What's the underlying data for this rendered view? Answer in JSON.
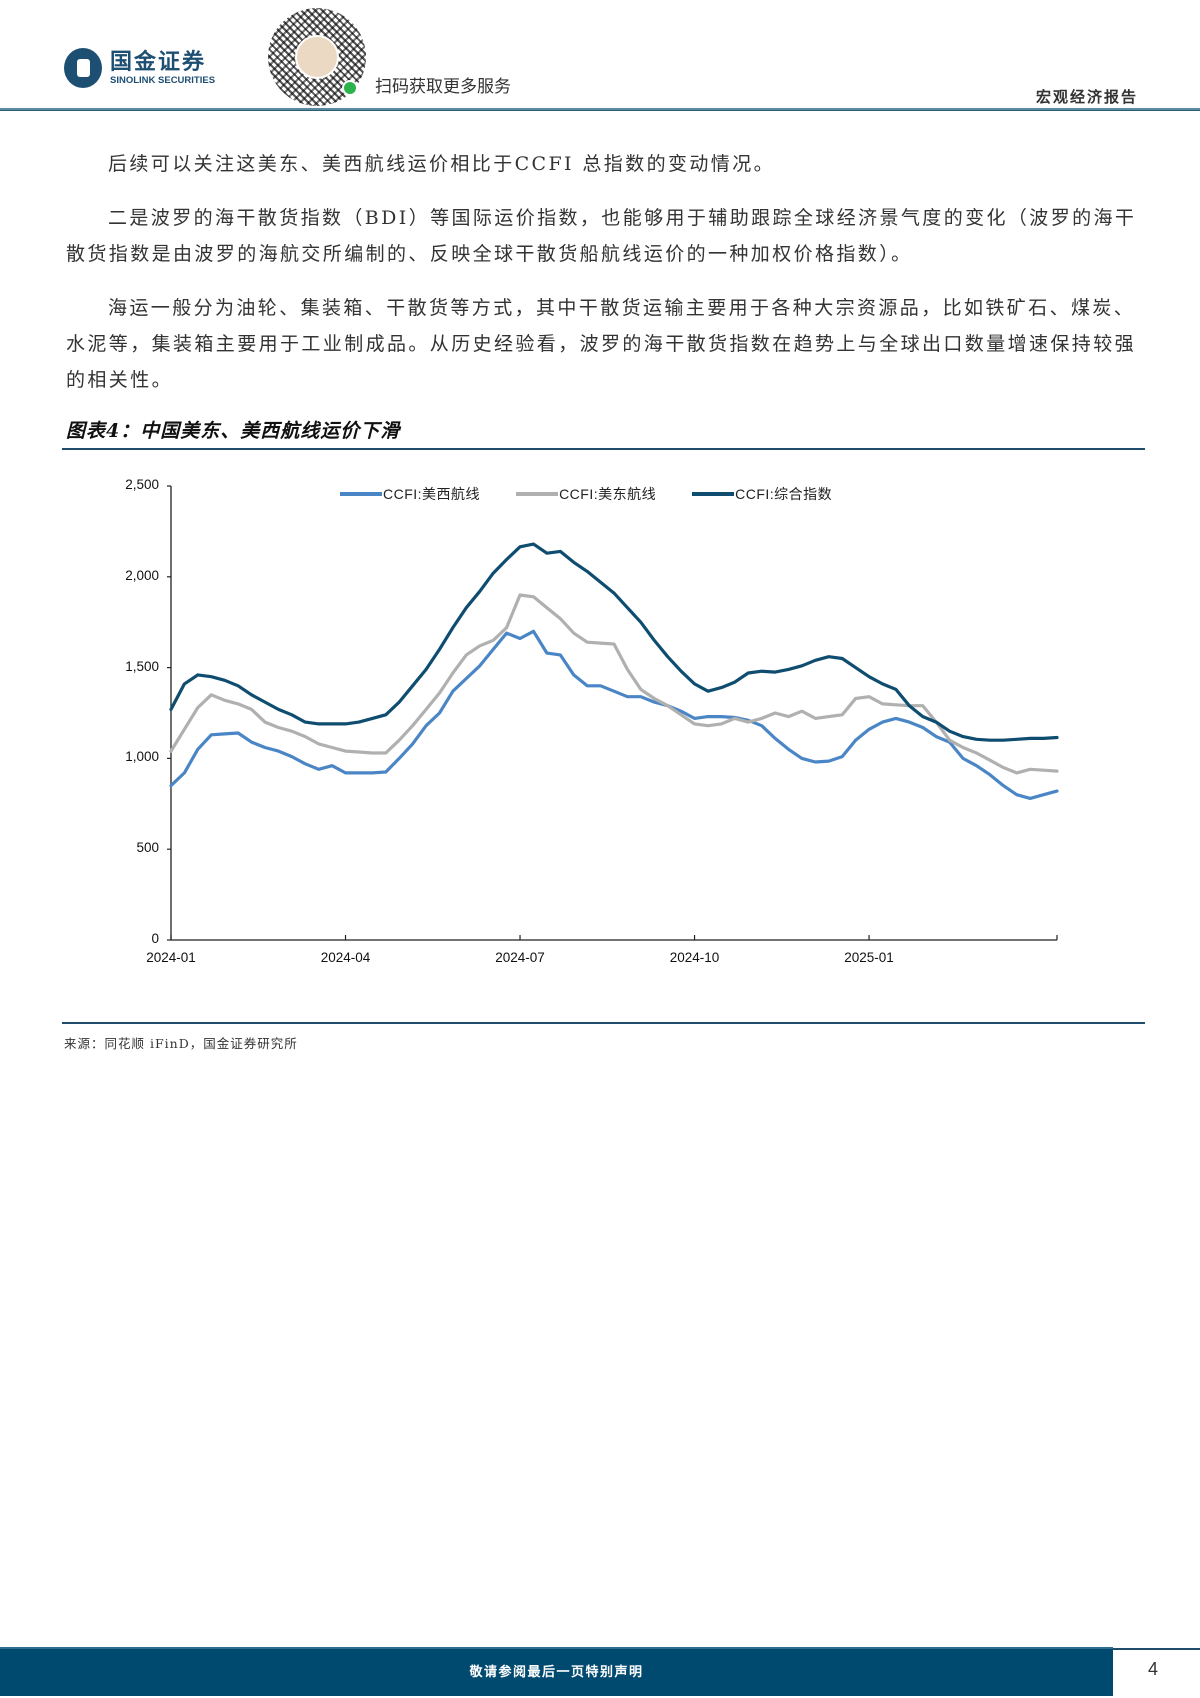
{
  "header": {
    "logo_cn": "国金证券",
    "logo_en": "SINOLINK SECURITIES",
    "qr_label": "扫码获取更多服务",
    "report_type": "宏观经济报告"
  },
  "body": {
    "paragraphs": [
      "后续可以关注这美东、美西航线运价相比于CCFI 总指数的变动情况。",
      "二是波罗的海干散货指数（BDI）等国际运价指数，也能够用于辅助跟踪全球经济景气度的变化（波罗的海干散货指数是由波罗的海航交所编制的、反映全球干散货船航线运价的一种加权价格指数）。",
      "海运一般分为油轮、集装箱、干散货等方式，其中干散货运输主要用于各种大宗资源品，比如铁矿石、煤炭、水泥等，集装箱主要用于工业制成品。从历史经验看，波罗的海干散货指数在趋势上与全球出口数量增速保持较强的相关性。"
    ]
  },
  "figure": {
    "title": "图表4：中国美东、美西航线运价下滑",
    "source": "来源：同花顺 iFinD，国金证券研究所"
  },
  "chart_data": {
    "type": "line",
    "title": "图表4：中国美东、美西航线运价下滑",
    "xlabel": "",
    "ylabel": "",
    "ylim": [
      0,
      2500
    ],
    "yticks": [
      0,
      500,
      1000,
      1500,
      2000,
      2500
    ],
    "ytick_labels": [
      "0",
      "500",
      "1,000",
      "1,500",
      "2,000",
      "2,500"
    ],
    "xtick_labels": [
      "2024-01",
      "2024-04",
      "2024-07",
      "2024-10",
      "2025-01"
    ],
    "xtick_index": [
      0,
      13,
      26,
      39,
      52
    ],
    "frequency": "weekly",
    "grid": false,
    "legend_position": "top",
    "series": [
      {
        "name": "CCFI:美西航线",
        "color": "#4a86c5",
        "values": [
          850,
          920,
          1050,
          1130,
          1135,
          1140,
          1090,
          1060,
          1040,
          1010,
          970,
          940,
          960,
          920,
          920,
          920,
          925,
          1000,
          1080,
          1180,
          1250,
          1370,
          1440,
          1510,
          1600,
          1690,
          1660,
          1700,
          1580,
          1570,
          1460,
          1400,
          1400,
          1370,
          1340,
          1340,
          1310,
          1290,
          1260,
          1220,
          1230,
          1230,
          1225,
          1210,
          1180,
          1110,
          1050,
          1000,
          980,
          985,
          1010,
          1100,
          1160,
          1200,
          1220,
          1200,
          1170,
          1120,
          1090,
          1000,
          960,
          910,
          850,
          800,
          780,
          800,
          820
        ]
      },
      {
        "name": "CCFI:美东航线",
        "color": "#b0b0b0",
        "values": [
          1040,
          1160,
          1280,
          1350,
          1320,
          1300,
          1270,
          1200,
          1170,
          1150,
          1120,
          1080,
          1060,
          1040,
          1035,
          1030,
          1030,
          1100,
          1180,
          1270,
          1360,
          1470,
          1570,
          1620,
          1650,
          1720,
          1900,
          1890,
          1830,
          1770,
          1690,
          1640,
          1635,
          1630,
          1490,
          1380,
          1330,
          1290,
          1240,
          1190,
          1180,
          1190,
          1220,
          1200,
          1220,
          1250,
          1230,
          1260,
          1220,
          1230,
          1240,
          1330,
          1340,
          1300,
          1295,
          1290,
          1290,
          1200,
          1100,
          1060,
          1030,
          990,
          950,
          920,
          940,
          935,
          930
        ]
      },
      {
        "name": "CCFI:综合指数",
        "color": "#0f4d70",
        "values": [
          1270,
          1410,
          1460,
          1450,
          1430,
          1400,
          1350,
          1310,
          1270,
          1240,
          1200,
          1190,
          1190,
          1190,
          1200,
          1220,
          1240,
          1310,
          1400,
          1490,
          1600,
          1720,
          1830,
          1920,
          2020,
          2095,
          2165,
          2180,
          2130,
          2140,
          2080,
          2030,
          1970,
          1910,
          1830,
          1750,
          1650,
          1560,
          1480,
          1410,
          1370,
          1390,
          1420,
          1470,
          1480,
          1475,
          1490,
          1510,
          1540,
          1560,
          1550,
          1500,
          1450,
          1410,
          1380,
          1290,
          1230,
          1200,
          1150,
          1120,
          1105,
          1100,
          1100,
          1105,
          1110,
          1110,
          1115
        ]
      }
    ]
  },
  "footer": {
    "disclaimer": "敬请参阅最后一页特别声明",
    "page_number": "4"
  }
}
